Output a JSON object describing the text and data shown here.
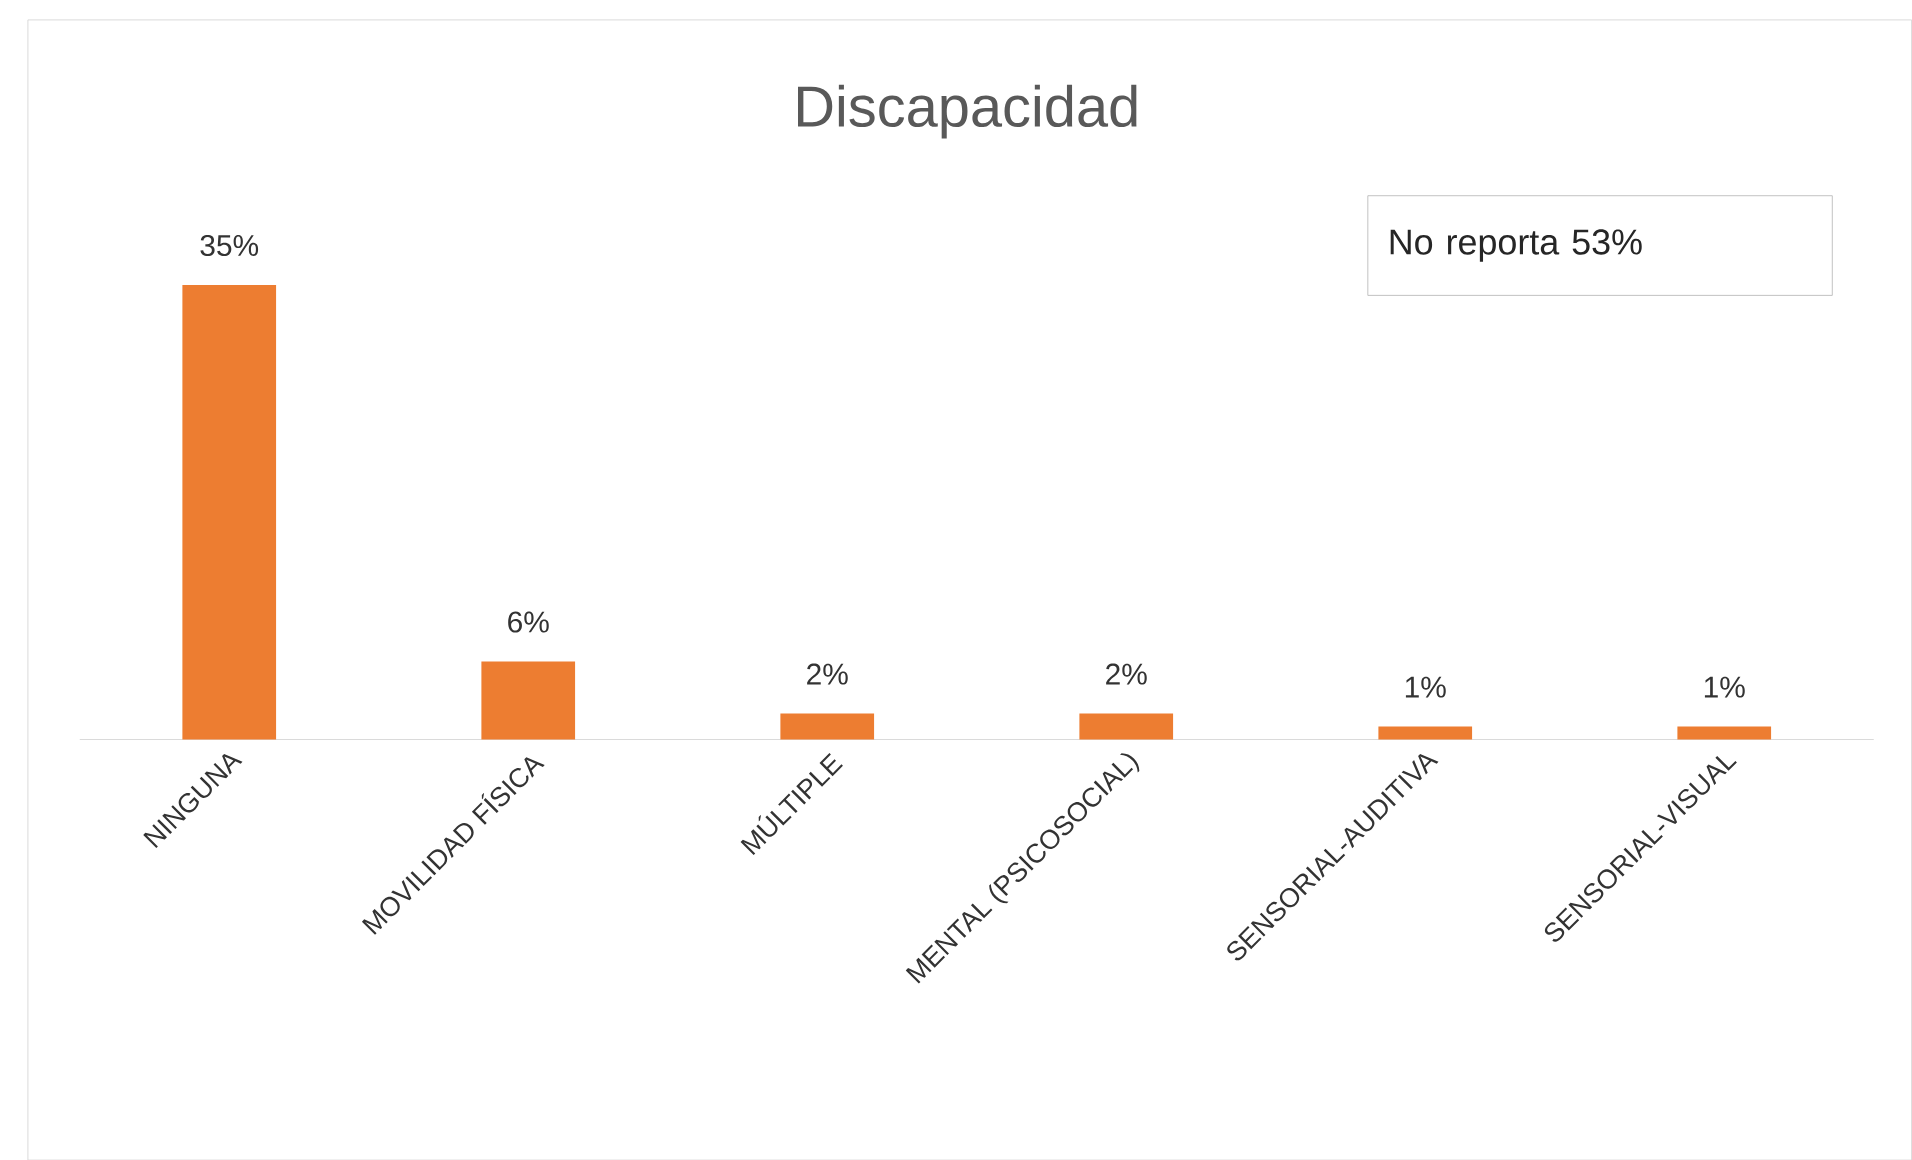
{
  "chart_data": {
    "type": "bar",
    "title": "Discapacidad",
    "categories": [
      "NINGUNA",
      "MOVILIDAD FÍSICA",
      "MÚLTIPLE",
      "MENTAL (PSICOSOCIAL)",
      "SENSORIAL-AUDITIVA",
      "SENSORIAL-VISUAL"
    ],
    "values": [
      35,
      6,
      2,
      2,
      1,
      1
    ],
    "value_labels": [
      "35%",
      "6%",
      "2%",
      "2%",
      "1%",
      "1%"
    ],
    "color": "#ed7d31",
    "annotations": [
      "No reporta 53%"
    ]
  }
}
